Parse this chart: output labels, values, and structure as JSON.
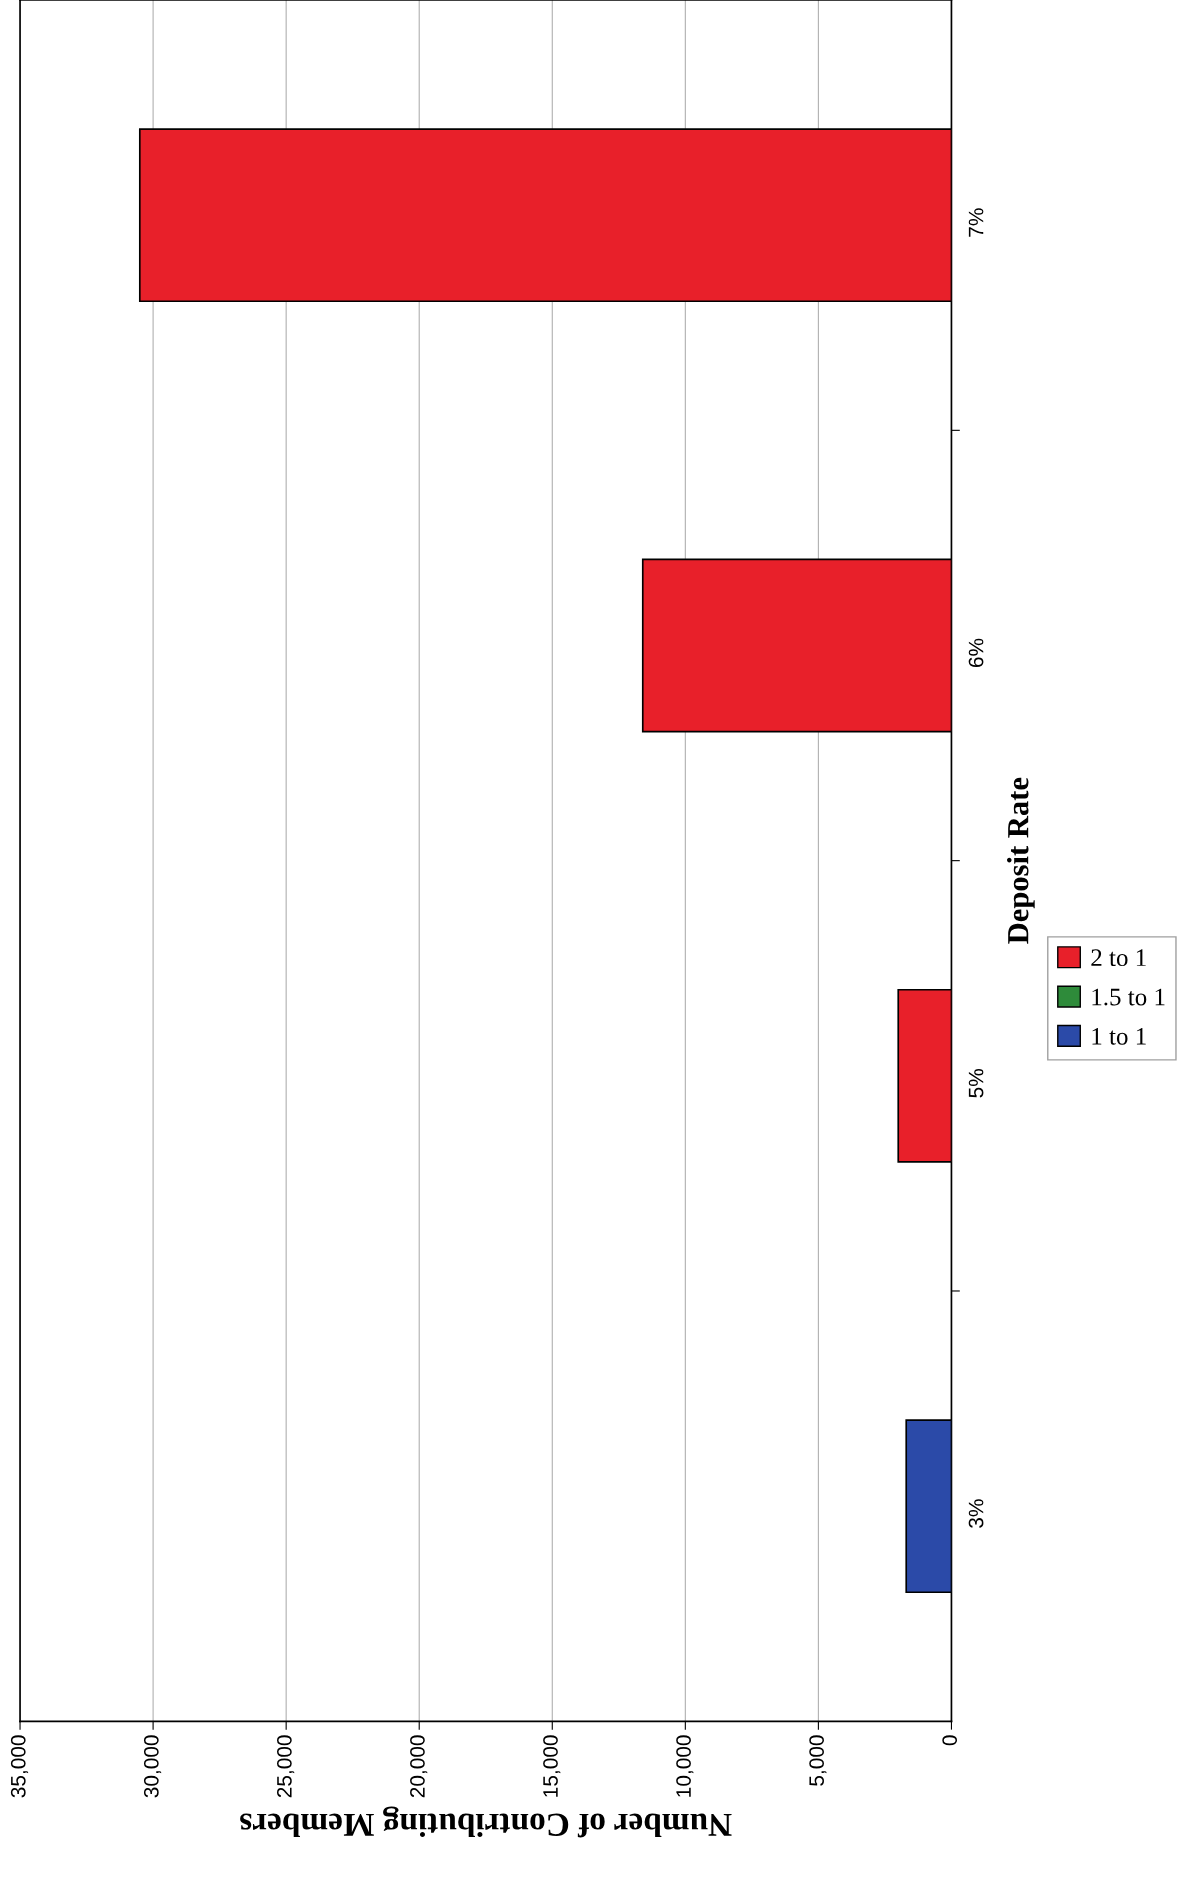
{
  "chart_data": {
    "type": "bar",
    "orientation": "horizontal",
    "stacked": true,
    "xlabel": "Number of Contributing Members",
    "ylabel": "Deposit Rate",
    "categories": [
      "7%",
      "6%",
      "5%",
      "3%"
    ],
    "series": [
      {
        "name": "1 to 1",
        "color": "#2b4aa8",
        "values": [
          null,
          null,
          null,
          1700
        ]
      },
      {
        "name": "1.5 to 1",
        "color": "#2e8b3a",
        "values": [
          null,
          null,
          null,
          null
        ]
      },
      {
        "name": "2 to 1",
        "color": "#e8202a",
        "values": [
          30500,
          11600,
          2000,
          null
        ]
      }
    ],
    "xlim": [
      35000,
      0
    ],
    "xticks": [
      {
        "value": 0,
        "label": "0"
      },
      {
        "value": 5000,
        "label": "5,000"
      },
      {
        "value": 10000,
        "label": "10,000"
      },
      {
        "value": 15000,
        "label": "15,000"
      },
      {
        "value": 20000,
        "label": "20,000"
      },
      {
        "value": 25000,
        "label": "25,000"
      },
      {
        "value": 30000,
        "label": "30,000"
      },
      {
        "value": 35000,
        "label": "35,000"
      }
    ],
    "grid": "x",
    "legend": "right"
  }
}
